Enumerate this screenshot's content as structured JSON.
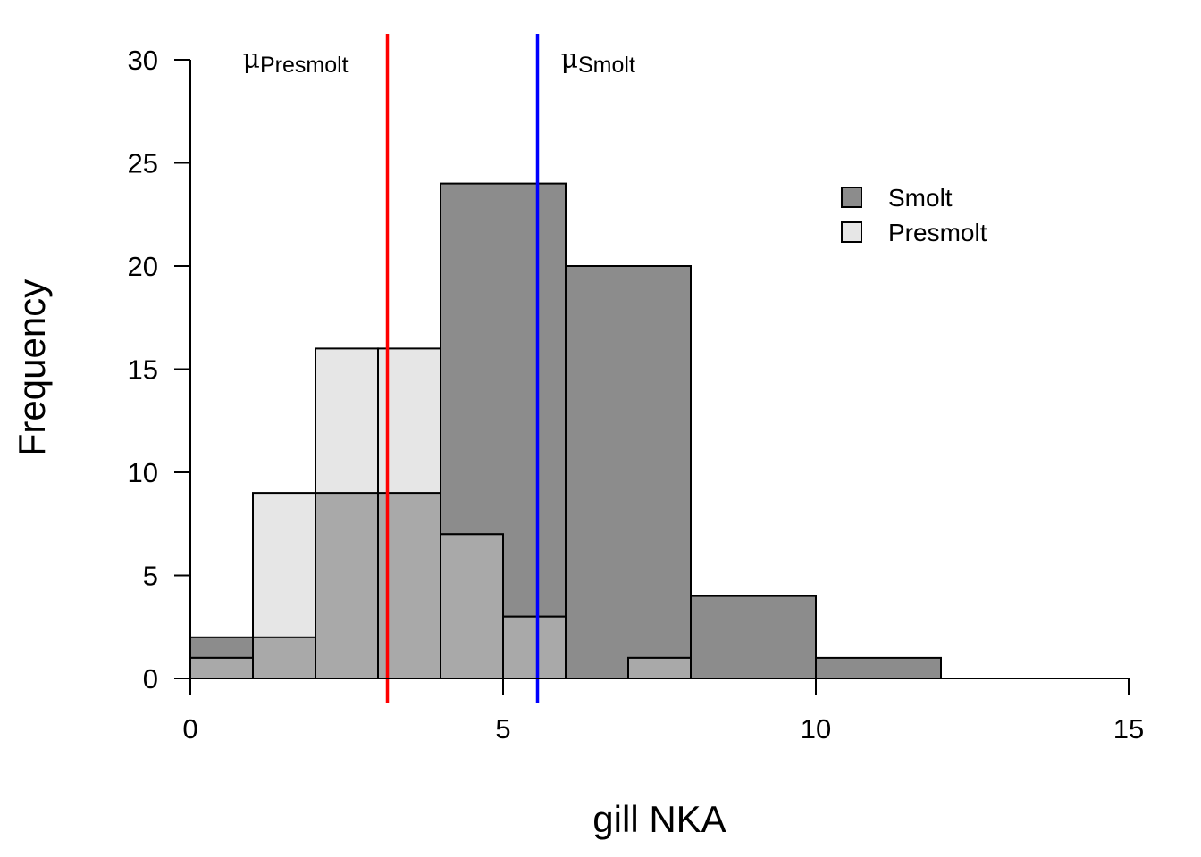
{
  "chart_data": {
    "type": "bar",
    "subtype": "overlapping-histogram",
    "title": "",
    "xlabel": "gill NKA",
    "ylabel": "Frequency",
    "xlim": [
      0,
      15
    ],
    "ylim": [
      0,
      30
    ],
    "xticks": [
      0,
      5,
      10,
      15
    ],
    "yticks": [
      0,
      5,
      10,
      15,
      20,
      25,
      30
    ],
    "grid": false,
    "legend_position": "top-right",
    "legend": [
      {
        "label": "Smolt",
        "color": "#8c8c8c"
      },
      {
        "label": "Presmolt",
        "color": "#e6e6e6"
      }
    ],
    "overlap_color": "#a9a9a9",
    "series": [
      {
        "name": "Smolt",
        "color": "#8c8c8c",
        "bins": [
          {
            "x0": 0,
            "x1": 1,
            "count": 2
          },
          {
            "x0": 1,
            "x1": 2,
            "count": 2
          },
          {
            "x0": 2,
            "x1": 3,
            "count": 9
          },
          {
            "x0": 3,
            "x1": 4,
            "count": 9
          },
          {
            "x0": 4,
            "x1": 6,
            "count": 24
          },
          {
            "x0": 6,
            "x1": 8,
            "count": 20
          },
          {
            "x0": 8,
            "x1": 10,
            "count": 4
          },
          {
            "x0": 10,
            "x1": 12,
            "count": 1
          }
        ]
      },
      {
        "name": "Presmolt",
        "color": "#e6e6e6",
        "bins": [
          {
            "x0": 0,
            "x1": 1,
            "count": 1
          },
          {
            "x0": 1,
            "x1": 2,
            "count": 9
          },
          {
            "x0": 2,
            "x1": 3,
            "count": 16
          },
          {
            "x0": 3,
            "x1": 4,
            "count": 16
          },
          {
            "x0": 4,
            "x1": 5,
            "count": 7
          },
          {
            "x0": 5,
            "x1": 6,
            "count": 3
          },
          {
            "x0": 6,
            "x1": 7,
            "count": 0
          },
          {
            "x0": 7,
            "x1": 8,
            "count": 1
          }
        ]
      }
    ],
    "mean_lines": [
      {
        "symbol": "μ",
        "subscript": "Presmolt",
        "x": 3.15,
        "color": "#ff0000"
      },
      {
        "symbol": "μ",
        "subscript": "Smolt",
        "x": 5.55,
        "color": "#0000ff"
      }
    ]
  }
}
